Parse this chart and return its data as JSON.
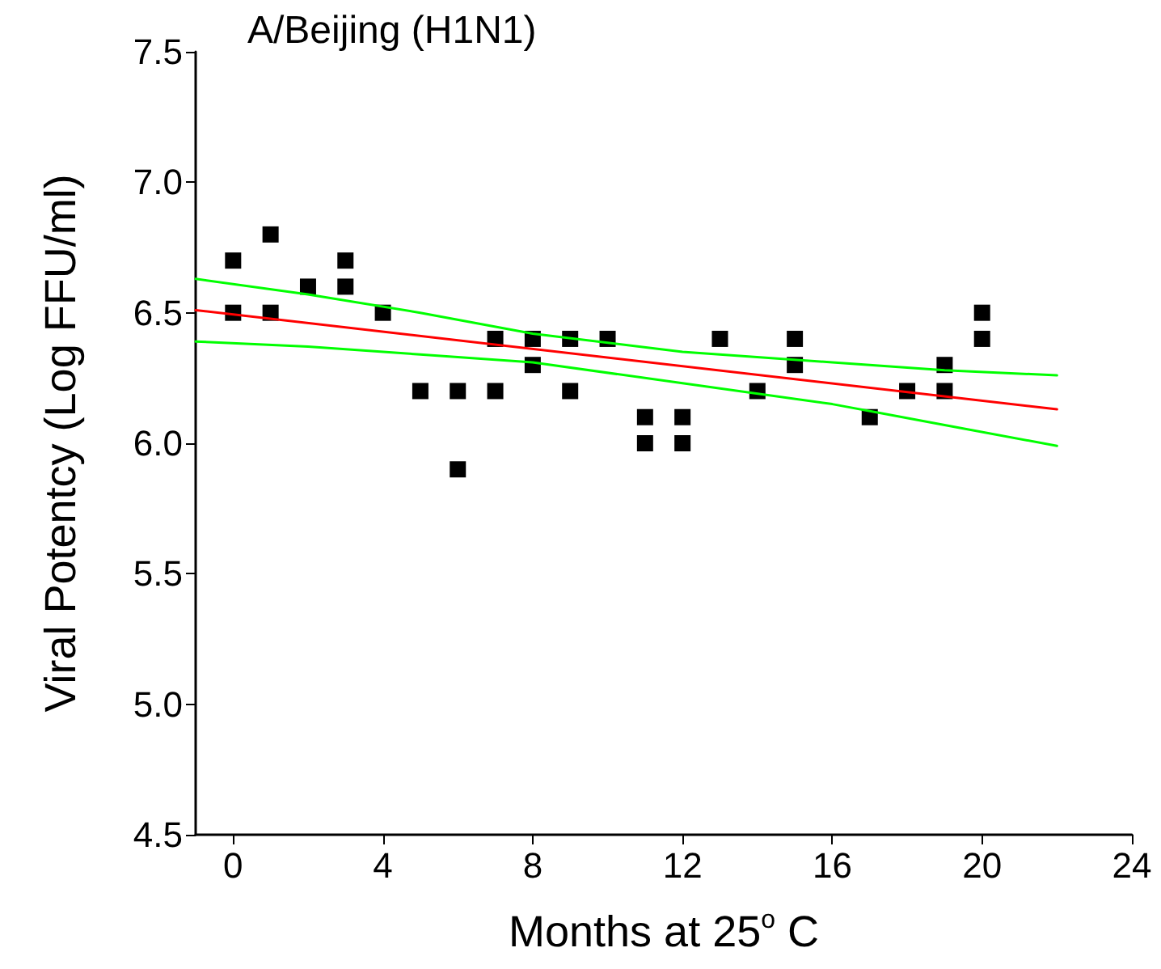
{
  "chart_data": {
    "type": "scatter",
    "title": "A/Beijing (H1N1)",
    "xlabel": "Months at 25$^{o}$ C",
    "ylabel": "Viral Potentcy (Log FFU/ml)",
    "xlim": [
      -1,
      24
    ],
    "xticks": [
      0,
      4,
      8,
      12,
      16,
      20,
      24
    ],
    "ylim": [
      4.5,
      7.5
    ],
    "yticks": [
      {
        "value": 4.5,
        "label": "4.5"
      },
      {
        "value": 5,
        "label": "5.0"
      },
      {
        "value": 5.5,
        "label": "5.5"
      },
      {
        "value": 6,
        "label": "6.0"
      },
      {
        "value": 6.5,
        "label": "6.5"
      },
      {
        "value": 7,
        "label": "7.0"
      },
      {
        "value": 7.5,
        "label": "7.5"
      }
    ],
    "grid": false,
    "marker": "square",
    "series": [
      {
        "color": "#000000",
        "x": [
          0,
          0,
          1,
          1,
          2,
          3,
          3,
          4,
          5,
          6,
          6,
          7,
          7,
          8,
          8,
          9,
          9,
          10,
          11,
          11,
          12,
          12,
          13,
          14,
          15,
          15,
          17,
          18,
          19,
          19,
          20,
          20
        ],
        "values": [
          6.7,
          6.5,
          6.8,
          6.5,
          6.6,
          6.7,
          6.6,
          6.5,
          6.2,
          6.2,
          5.9,
          6.4,
          6.2,
          6.4,
          6.3,
          6.4,
          6.2,
          6.4,
          6.1,
          6.0,
          6.1,
          6.0,
          6.4,
          6.2,
          6.4,
          6.3,
          6.1,
          6.2,
          6.3,
          6.2,
          6.5,
          6.4
        ]
      },
      {
        "type": "line",
        "color": "#ff0000",
        "marker": "none",
        "x": [
          -1,
          22
        ],
        "values": [
          6.51,
          6.13
        ]
      },
      {
        "type": "line",
        "color": "#00ff00",
        "marker": "none",
        "x": [
          -1,
          2,
          5,
          8,
          12,
          16,
          19,
          22
        ],
        "values": [
          6.63,
          6.57,
          6.5,
          6.42,
          6.35,
          6.31,
          6.28,
          6.26
        ]
      },
      {
        "type": "line",
        "color": "#00ff00",
        "marker": "none",
        "x": [
          -1,
          2,
          5,
          8,
          12,
          16,
          19,
          22
        ],
        "values": [
          6.39,
          6.37,
          6.34,
          6.31,
          6.23,
          6.15,
          6.07,
          5.99
        ]
      }
    ]
  }
}
